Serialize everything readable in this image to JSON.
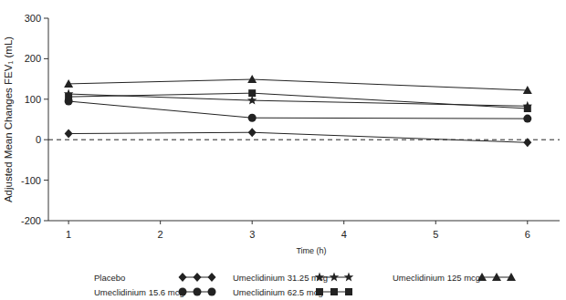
{
  "chart_data": {
    "type": "line",
    "x_label": "Time (h)",
    "y_label": "Adjusted Mean Changes FEV₁ (mL)",
    "x": [
      1,
      3,
      6
    ],
    "xlim": [
      0.78,
      6.35
    ],
    "xticks": [
      1,
      2,
      3,
      4,
      5,
      6
    ],
    "ylim": [
      -200,
      300
    ],
    "yticks": [
      -200,
      -100,
      0,
      100,
      200,
      300
    ],
    "legend": "bottom",
    "series": [
      {
        "name": "Placebo",
        "color": "#222222",
        "marker": "diamond",
        "values": [
          15,
          18,
          -7
        ]
      },
      {
        "name": "Umeclidinium 15.6 mcg",
        "color": "#222222",
        "marker": "circle",
        "values": [
          95,
          54,
          52
        ]
      },
      {
        "name": "Umeclidinium 31.25 mcg",
        "color": "#222222",
        "marker": "star",
        "values": [
          113,
          97,
          83
        ]
      },
      {
        "name": "Umeclidinium 62.5 mcg",
        "color": "#222222",
        "marker": "square",
        "values": [
          106,
          115,
          77
        ]
      },
      {
        "name": "Umeclidinium 125 mcg",
        "color": "#222222",
        "marker": "triangle",
        "values": [
          138,
          149,
          122
        ]
      }
    ]
  }
}
